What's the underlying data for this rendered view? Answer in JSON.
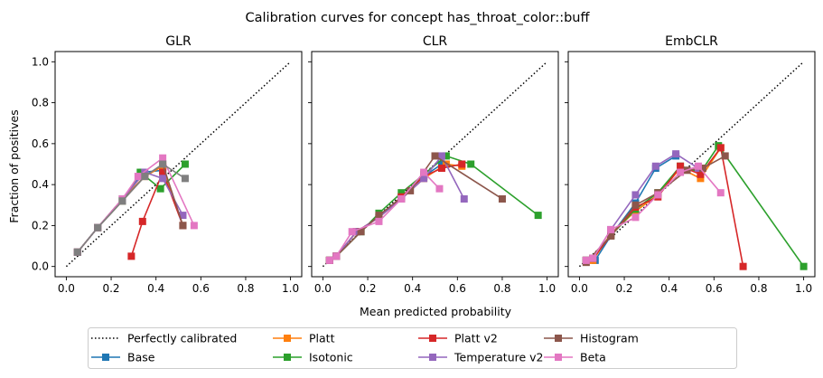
{
  "figure": {
    "title": "Calibration curves for concept has_throat_color::buff",
    "xlabel": "Mean predicted probability",
    "ylabel": "Fraction of positives"
  },
  "colors": {
    "Perfectly calibrated": "#000000",
    "Base": "#1f77b4",
    "Platt": "#ff7f0e",
    "Isotonic": "#2ca02c",
    "Platt v2": "#d62728",
    "Temperature v2": "#9467bd",
    "Histogram": "#8c564b",
    "Beta": "#e377c2",
    "Other": "#7f7f7f"
  },
  "legend": {
    "placement": "bottom-center",
    "entries": [
      "Perfectly calibrated",
      "Base",
      "Platt",
      "Isotonic",
      "Platt v2",
      "Temperature v2",
      "Histogram",
      "Beta"
    ]
  },
  "chart_data": [
    {
      "type": "line",
      "title": "GLR",
      "xlim": [
        -0.05,
        1.05
      ],
      "ylim": [
        -0.05,
        1.05
      ],
      "xticks": [
        "0.0",
        "0.2",
        "0.4",
        "0.6",
        "0.8",
        "1.0"
      ],
      "yticks": [
        "0.0",
        "0.2",
        "0.4",
        "0.6",
        "0.8",
        "1.0"
      ],
      "series": [
        {
          "name": "Perfectly calibrated",
          "style": "dotted",
          "points": [
            [
              0,
              0
            ],
            [
              1,
              1
            ]
          ]
        },
        {
          "name": "Base",
          "points": [
            [
              0.05,
              0.07
            ],
            [
              0.14,
              0.19
            ],
            [
              0.25,
              0.33
            ],
            [
              0.34,
              0.46
            ],
            [
              0.43,
              0.47
            ],
            [
              0.52,
              0.2
            ]
          ]
        },
        {
          "name": "Platt",
          "points": [
            [
              0.05,
              0.07
            ],
            [
              0.14,
              0.19
            ],
            [
              0.25,
              0.33
            ],
            [
              0.35,
              0.44
            ],
            [
              0.43,
              0.49
            ],
            [
              0.52,
              0.2
            ]
          ]
        },
        {
          "name": "Isotonic",
          "points": [
            [
              0.05,
              0.07
            ],
            [
              0.14,
              0.19
            ],
            [
              0.25,
              0.32
            ],
            [
              0.33,
              0.46
            ],
            [
              0.42,
              0.38
            ],
            [
              0.53,
              0.5
            ]
          ]
        },
        {
          "name": "Platt v2",
          "points": [
            [
              0.29,
              0.05
            ],
            [
              0.34,
              0.22
            ],
            [
              0.43,
              0.46
            ],
            [
              0.52,
              0.2
            ]
          ]
        },
        {
          "name": "Temperature v2",
          "points": [
            [
              0.05,
              0.07
            ],
            [
              0.14,
              0.19
            ],
            [
              0.25,
              0.33
            ],
            [
              0.35,
              0.46
            ],
            [
              0.43,
              0.43
            ],
            [
              0.52,
              0.25
            ]
          ]
        },
        {
          "name": "Histogram",
          "points": [
            [
              0.05,
              0.07
            ],
            [
              0.14,
              0.19
            ],
            [
              0.25,
              0.32
            ],
            [
              0.35,
              0.44
            ],
            [
              0.43,
              0.5
            ],
            [
              0.52,
              0.2
            ]
          ]
        },
        {
          "name": "Beta",
          "points": [
            [
              0.05,
              0.07
            ],
            [
              0.14,
              0.19
            ],
            [
              0.25,
              0.33
            ],
            [
              0.32,
              0.44
            ],
            [
              0.43,
              0.53
            ],
            [
              0.57,
              0.2
            ]
          ]
        },
        {
          "name": "Other",
          "points": [
            [
              0.05,
              0.07
            ],
            [
              0.14,
              0.19
            ],
            [
              0.25,
              0.32
            ],
            [
              0.35,
              0.44
            ],
            [
              0.43,
              0.5
            ],
            [
              0.53,
              0.43
            ]
          ]
        }
      ]
    },
    {
      "type": "line",
      "title": "CLR",
      "xlim": [
        -0.05,
        1.05
      ],
      "ylim": [
        -0.05,
        1.05
      ],
      "xticks": [
        "0.0",
        "0.2",
        "0.4",
        "0.6",
        "0.8",
        "1.0"
      ],
      "yticks": [
        "0.0",
        "0.2",
        "0.4",
        "0.6",
        "0.8",
        "1.0"
      ],
      "series": [
        {
          "name": "Perfectly calibrated",
          "style": "dotted",
          "points": [
            [
              0,
              0
            ],
            [
              1,
              1
            ]
          ]
        },
        {
          "name": "Base",
          "points": [
            [
              0.03,
              0.03
            ],
            [
              0.06,
              0.05
            ],
            [
              0.15,
              0.17
            ],
            [
              0.25,
              0.24
            ],
            [
              0.35,
              0.34
            ],
            [
              0.45,
              0.44
            ],
            [
              0.53,
              0.5
            ]
          ]
        },
        {
          "name": "Platt",
          "points": [
            [
              0.03,
              0.03
            ],
            [
              0.06,
              0.05
            ],
            [
              0.15,
              0.17
            ],
            [
              0.25,
              0.24
            ],
            [
              0.35,
              0.33
            ],
            [
              0.45,
              0.43
            ],
            [
              0.55,
              0.5
            ],
            [
              0.62,
              0.49
            ]
          ]
        },
        {
          "name": "Isotonic",
          "points": [
            [
              0.03,
              0.03
            ],
            [
              0.06,
              0.05
            ],
            [
              0.17,
              0.17
            ],
            [
              0.25,
              0.26
            ],
            [
              0.35,
              0.36
            ],
            [
              0.45,
              0.45
            ],
            [
              0.55,
              0.54
            ],
            [
              0.66,
              0.5
            ],
            [
              0.96,
              0.25
            ]
          ]
        },
        {
          "name": "Platt v2",
          "points": [
            [
              0.03,
              0.03
            ],
            [
              0.06,
              0.05
            ],
            [
              0.15,
              0.17
            ],
            [
              0.25,
              0.24
            ],
            [
              0.35,
              0.34
            ],
            [
              0.45,
              0.44
            ],
            [
              0.53,
              0.48
            ],
            [
              0.62,
              0.5
            ]
          ]
        },
        {
          "name": "Temperature v2",
          "points": [
            [
              0.03,
              0.03
            ],
            [
              0.06,
              0.05
            ],
            [
              0.15,
              0.17
            ],
            [
              0.25,
              0.24
            ],
            [
              0.35,
              0.33
            ],
            [
              0.45,
              0.43
            ],
            [
              0.53,
              0.54
            ],
            [
              0.63,
              0.33
            ]
          ]
        },
        {
          "name": "Histogram",
          "points": [
            [
              0.03,
              0.03
            ],
            [
              0.06,
              0.05
            ],
            [
              0.17,
              0.17
            ],
            [
              0.25,
              0.25
            ],
            [
              0.39,
              0.37
            ],
            [
              0.5,
              0.54
            ],
            [
              0.8,
              0.33
            ]
          ]
        },
        {
          "name": "Beta",
          "points": [
            [
              0.03,
              0.03
            ],
            [
              0.06,
              0.05
            ],
            [
              0.13,
              0.17
            ],
            [
              0.25,
              0.22
            ],
            [
              0.35,
              0.33
            ],
            [
              0.45,
              0.46
            ],
            [
              0.52,
              0.38
            ]
          ]
        }
      ]
    },
    {
      "type": "line",
      "title": "EmbCLR",
      "xlim": [
        -0.05,
        1.05
      ],
      "ylim": [
        -0.05,
        1.05
      ],
      "xticks": [
        "0.0",
        "0.2",
        "0.4",
        "0.6",
        "0.8",
        "1.0"
      ],
      "yticks": [
        "0.0",
        "0.2",
        "0.4",
        "0.6",
        "0.8",
        "1.0"
      ],
      "series": [
        {
          "name": "Perfectly calibrated",
          "style": "dotted",
          "points": [
            [
              0,
              0
            ],
            [
              1,
              1
            ]
          ]
        },
        {
          "name": "Base",
          "points": [
            [
              0.03,
              0.03
            ],
            [
              0.07,
              0.03
            ],
            [
              0.14,
              0.15
            ],
            [
              0.25,
              0.31
            ],
            [
              0.34,
              0.48
            ],
            [
              0.43,
              0.54
            ]
          ]
        },
        {
          "name": "Platt",
          "points": [
            [
              0.03,
              0.03
            ],
            [
              0.06,
              0.03
            ],
            [
              0.14,
              0.16
            ],
            [
              0.25,
              0.27
            ],
            [
              0.35,
              0.35
            ],
            [
              0.45,
              0.48
            ],
            [
              0.54,
              0.43
            ],
            [
              0.63,
              0.58
            ]
          ]
        },
        {
          "name": "Isotonic",
          "points": [
            [
              0.03,
              0.03
            ],
            [
              0.06,
              0.04
            ],
            [
              0.14,
              0.15
            ],
            [
              0.25,
              0.28
            ],
            [
              0.35,
              0.36
            ],
            [
              0.45,
              0.49
            ],
            [
              0.54,
              0.46
            ],
            [
              0.62,
              0.59
            ],
            [
              1.0,
              0.0
            ]
          ]
        },
        {
          "name": "Platt v2",
          "points": [
            [
              0.03,
              0.03
            ],
            [
              0.06,
              0.04
            ],
            [
              0.14,
              0.15
            ],
            [
              0.25,
              0.29
            ],
            [
              0.35,
              0.34
            ],
            [
              0.45,
              0.49
            ],
            [
              0.54,
              0.45
            ],
            [
              0.63,
              0.58
            ],
            [
              0.73,
              0.0
            ]
          ]
        },
        {
          "name": "Temperature v2",
          "points": [
            [
              0.03,
              0.03
            ],
            [
              0.06,
              0.04
            ],
            [
              0.14,
              0.18
            ],
            [
              0.25,
              0.35
            ],
            [
              0.34,
              0.49
            ],
            [
              0.43,
              0.55
            ],
            [
              0.53,
              0.48
            ]
          ]
        },
        {
          "name": "Histogram",
          "points": [
            [
              0.03,
              0.02
            ],
            [
              0.14,
              0.15
            ],
            [
              0.25,
              0.3
            ],
            [
              0.35,
              0.36
            ],
            [
              0.48,
              0.47
            ],
            [
              0.55,
              0.48
            ],
            [
              0.65,
              0.54
            ]
          ]
        },
        {
          "name": "Beta",
          "points": [
            [
              0.03,
              0.03
            ],
            [
              0.06,
              0.04
            ],
            [
              0.14,
              0.18
            ],
            [
              0.25,
              0.24
            ],
            [
              0.35,
              0.35
            ],
            [
              0.45,
              0.46
            ],
            [
              0.53,
              0.49
            ],
            [
              0.63,
              0.36
            ]
          ]
        }
      ]
    }
  ]
}
